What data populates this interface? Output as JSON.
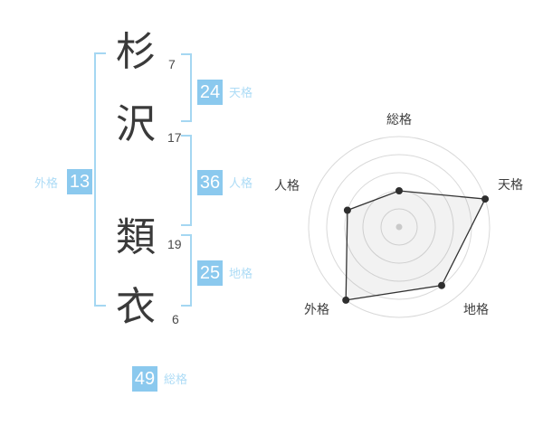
{
  "name_diagram": {
    "characters": [
      {
        "char": "杉",
        "strokes": "7"
      },
      {
        "char": "沢",
        "strokes": "17"
      },
      {
        "char": "類",
        "strokes": "19"
      },
      {
        "char": "衣",
        "strokes": "6"
      }
    ],
    "kaku": [
      {
        "id": "tenkaku",
        "value": "24",
        "label": "天格"
      },
      {
        "id": "jinkaku",
        "value": "36",
        "label": "人格"
      },
      {
        "id": "chikaku",
        "value": "25",
        "label": "地格"
      },
      {
        "id": "gaikaku",
        "value": "13",
        "label": "外格"
      },
      {
        "id": "soukaku",
        "value": "49",
        "label": "総格"
      }
    ]
  },
  "colors": {
    "accent_blue": "#8bc9ee",
    "label_blue": "#aedcf6",
    "bracket_blue": "#a5d7f2",
    "text_dark": "#3a3a3a",
    "grid_gray": "#d9d9d9",
    "polygon_line": "#333333",
    "polygon_fill": "rgba(90,90,90,0.08)",
    "point_dot": "#2e2e2e",
    "center_dot": "#c9c9c9"
  },
  "chart_data": {
    "type": "radar",
    "categories": [
      "総格",
      "天格",
      "地格",
      "外格",
      "人格"
    ],
    "values": [
      2,
      5,
      4,
      5,
      3
    ],
    "max": 5,
    "rings": 5,
    "start_angle_deg": 90,
    "direction": "clockwise",
    "grid": "concentric-circles",
    "legend": "none"
  }
}
